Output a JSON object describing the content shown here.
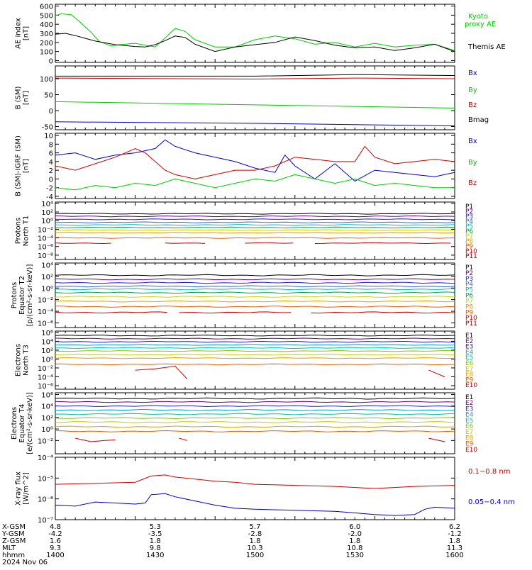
{
  "palette": {
    "black": "#000000",
    "green": "#00cc00",
    "blue": "#0000cc",
    "red": "#cc0000",
    "p_colors": [
      "#000000",
      "#6a0080",
      "#2020cc",
      "#2a6ad6",
      "#00b8b8",
      "#00a050",
      "#c8d400",
      "#e0a000",
      "#e06000",
      "#cc0000",
      "#880000"
    ],
    "e_colors": [
      "#000000",
      "#6a0080",
      "#2020cc",
      "#00a0d0",
      "#00c0a0",
      "#80c800",
      "#c8c800",
      "#e0a000",
      "#e06000",
      "#cc0000"
    ]
  },
  "chart_data": [
    {
      "id": "ae",
      "type": "line",
      "ylabel_lines": [
        "AE index",
        "[nT]"
      ],
      "ylim": [
        -20,
        620
      ],
      "y_scale": "linear",
      "yticks": [
        0,
        100,
        200,
        300,
        400,
        500,
        600
      ],
      "ytick_labels": [
        "0",
        "100",
        "200",
        "300",
        "400",
        "500",
        "600"
      ],
      "legend": [
        {
          "text": "Kyoto",
          "color": "green"
        },
        {
          "text": "proxy AE",
          "color": "green"
        },
        {
          "text": "Themis AE",
          "color": "black"
        }
      ],
      "series": [
        {
          "name": "Kyoto proxy AE",
          "color": "green",
          "x": [
            0,
            3,
            8,
            12,
            18,
            22,
            28,
            32,
            40,
            45,
            50,
            55,
            60,
            65,
            70,
            80,
            90,
            100,
            110,
            120,
            130,
            140,
            150,
            160,
            170,
            180,
            190,
            200
          ],
          "y": [
            495,
            515,
            505,
            430,
            310,
            210,
            160,
            175,
            190,
            170,
            150,
            250,
            355,
            320,
            230,
            150,
            150,
            230,
            270,
            240,
            180,
            200,
            150,
            190,
            150,
            170,
            180,
            110
          ]
        },
        {
          "name": "Themis AE",
          "color": "black",
          "x": [
            0,
            5,
            10,
            20,
            30,
            40,
            45,
            50,
            55,
            60,
            65,
            70,
            80,
            90,
            100,
            110,
            120,
            130,
            140,
            150,
            160,
            170,
            180,
            190,
            200
          ],
          "y": [
            290,
            300,
            275,
            215,
            175,
            155,
            150,
            175,
            220,
            270,
            255,
            180,
            100,
            150,
            175,
            200,
            260,
            220,
            170,
            140,
            150,
            110,
            140,
            180,
            100
          ]
        }
      ]
    },
    {
      "id": "bsm",
      "type": "line",
      "ylabel_lines": [
        "B (SM)",
        "[nT]"
      ],
      "ylim": [
        -60,
        140
      ],
      "y_scale": "linear",
      "yticks": [
        -50,
        0,
        50,
        100
      ],
      "ytick_labels": [
        "-50",
        "0",
        "50",
        "100"
      ],
      "legend": [
        {
          "text": "Bx",
          "color": "blue"
        },
        {
          "text": "By",
          "color": "green"
        },
        {
          "text": "Bz",
          "color": "red"
        },
        {
          "text": "Bmag",
          "color": "black"
        }
      ],
      "series": [
        {
          "name": "Bmag",
          "color": "black",
          "x": [
            0,
            100,
            150,
            200
          ],
          "y": [
            108,
            108,
            113,
            110
          ]
        },
        {
          "name": "Bz",
          "color": "red",
          "x": [
            0,
            100,
            150,
            200
          ],
          "y": [
            102,
            99,
            102,
            100
          ]
        },
        {
          "name": "By",
          "color": "green",
          "x": [
            0,
            100,
            200
          ],
          "y": [
            28,
            18,
            8
          ]
        },
        {
          "name": "Bx",
          "color": "blue",
          "x": [
            0,
            100,
            200
          ],
          "y": [
            -35,
            -40,
            -48
          ]
        }
      ]
    },
    {
      "id": "bdiff",
      "type": "line",
      "ylabel_lines": [
        "B (SM)-IGRF (SM)",
        "[nT]"
      ],
      "ylim": [
        -4.5,
        10.5
      ],
      "y_scale": "linear",
      "yticks": [
        -4,
        -2,
        0,
        2,
        4,
        6,
        8,
        10
      ],
      "ytick_labels": [
        "-4",
        "-2",
        "0",
        "2",
        "4",
        "6",
        "8",
        "10"
      ],
      "legend": [
        {
          "text": "Bx",
          "color": "blue"
        },
        {
          "text": "By",
          "color": "green"
        },
        {
          "text": "Bz",
          "color": "red"
        }
      ],
      "series": [
        {
          "name": "Bx",
          "color": "blue",
          "x": [
            0,
            10,
            20,
            30,
            40,
            50,
            55,
            60,
            70,
            80,
            90,
            100,
            110,
            115,
            120,
            130,
            140,
            150,
            160,
            170,
            180,
            190,
            200
          ],
          "y": [
            5.5,
            6,
            4.5,
            5.5,
            6,
            7,
            9,
            7.5,
            6,
            5,
            4,
            2.5,
            1.5,
            5.5,
            3,
            0,
            3.5,
            -0.5,
            2,
            1.5,
            1,
            0.5,
            1.5
          ]
        },
        {
          "name": "Bz",
          "color": "red",
          "x": [
            0,
            10,
            20,
            30,
            40,
            45,
            55,
            60,
            70,
            80,
            90,
            100,
            110,
            120,
            130,
            140,
            150,
            155,
            160,
            170,
            180,
            190,
            200
          ],
          "y": [
            3,
            2,
            3.5,
            5,
            7,
            6,
            2,
            1,
            0,
            1,
            2,
            2,
            3,
            5,
            4.5,
            4,
            4,
            7.5,
            5,
            3.5,
            4,
            4.5,
            4
          ]
        },
        {
          "name": "By",
          "color": "green",
          "x": [
            0,
            10,
            20,
            30,
            40,
            50,
            60,
            70,
            80,
            90,
            100,
            110,
            120,
            130,
            140,
            150,
            160,
            170,
            180,
            190,
            200
          ],
          "y": [
            -2,
            -2.5,
            -1.5,
            -2,
            -1,
            -1.5,
            0,
            -1,
            -2,
            -1,
            0,
            -0.5,
            1,
            0,
            -1,
            0,
            -1.5,
            -1,
            -1.5,
            -2,
            -2
          ]
        }
      ]
    },
    {
      "id": "p_north",
      "type": "line",
      "ylabel_lines": [
        "Protons",
        "North T1"
      ],
      "y_scale": "log",
      "ylim_exp": [
        -9,
        4.3
      ],
      "yticks_exp": [
        -8,
        -6,
        -4,
        -2,
        0,
        2,
        4
      ],
      "ytick_labels": [
        "10⁻⁸",
        "10⁻⁶",
        "10⁻⁴",
        "10⁻²",
        "10⁰",
        "10²",
        "10⁴"
      ],
      "legend_colors": "p_colors",
      "legend_labels": [
        "P1",
        "P2",
        "P3",
        "P4",
        "P5",
        "P6",
        "P7",
        "P8",
        "P9",
        "P10",
        "P11"
      ],
      "levels_exp": [
        1.6,
        1.0,
        0.3,
        -0.4,
        -1.0,
        -1.6,
        -2.2,
        -2.8,
        -4.0,
        -5.2,
        -7.0
      ],
      "gaps": [
        [],
        [],
        [],
        [],
        [],
        [],
        [],
        [],
        [],
        [
          [
            28,
            55
          ],
          [
            78,
            95
          ],
          [
            122,
            130
          ]
        ],
        [
          [
            0,
            200
          ]
        ]
      ]
    },
    {
      "id": "p_equator",
      "type": "line",
      "ylabel_lines": [
        "Protons",
        "Equator T2",
        "[p/(cm²-s-sr-keV)]"
      ],
      "y_scale": "log",
      "ylim_exp": [
        -6.8,
        4.3
      ],
      "yticks_exp": [
        -6,
        -4,
        -2,
        0,
        2,
        4
      ],
      "ytick_labels": [
        "10⁻⁶",
        "10⁻⁴",
        "10⁻²",
        "10⁰",
        "10²",
        "10⁴"
      ],
      "legend_colors": "p_colors",
      "legend_labels": [
        "P1",
        "P2",
        "P3",
        "P4",
        "P5",
        "P6",
        "P7",
        "P8",
        "P9",
        "P10",
        "P11"
      ],
      "levels_exp": [
        2.2,
        1.5,
        0.9,
        0.3,
        -0.2,
        -0.8,
        -1.5,
        -2.3,
        -3.2,
        -4.2,
        -6.0
      ],
      "gaps": [
        [],
        [],
        [],
        [],
        [],
        [],
        [],
        [],
        [],
        [
          [
            58,
            62
          ],
          [
            118,
            128
          ]
        ],
        [
          [
            0,
            200
          ]
        ]
      ]
    },
    {
      "id": "e_north",
      "type": "line",
      "ylabel_lines": [
        "Electrons",
        "North T3"
      ],
      "y_scale": "log",
      "ylim_exp": [
        -6.8,
        6.3
      ],
      "yticks_exp": [
        -6,
        -4,
        -2,
        0,
        2,
        4,
        6
      ],
      "ytick_labels": [
        "10⁻⁶",
        "10⁻⁴",
        "10⁻²",
        "10⁰",
        "10²",
        "10⁴",
        "10⁶"
      ],
      "legend_colors": "e_colors",
      "legend_labels": [
        "E1",
        "E2",
        "E3",
        "E4",
        "E5",
        "E6",
        "E7",
        "E8",
        "E9",
        "E10"
      ],
      "levels_exp": [
        5.3,
        4.6,
        3.9,
        3.2,
        2.5,
        1.8,
        1.0,
        0.2,
        -1.2,
        -6.0
      ],
      "gaps": [
        [],
        [],
        [],
        [],
        [],
        [],
        [],
        [],
        [],
        [
          [
            0,
            200
          ]
        ]
      ],
      "extra_segments": [
        {
          "color_index": 9,
          "x": [
            40,
            50,
            60,
            66
          ],
          "y_exp": [
            -2.5,
            -2.2,
            -1.6,
            -4.5
          ]
        },
        {
          "color_index": 9,
          "x": [
            187,
            195
          ],
          "y_exp": [
            -2.5,
            -4.0
          ]
        }
      ]
    },
    {
      "id": "e_equator",
      "type": "line",
      "ylabel_lines": [
        "Electrons",
        "Equator T4",
        "[e/(cm²-s-sr-keV)]"
      ],
      "y_scale": "log",
      "ylim_exp": [
        -4.3,
        6.3
      ],
      "yticks_exp": [
        -2,
        0,
        2,
        4,
        6
      ],
      "ytick_labels": [
        "10⁻²",
        "10⁰",
        "10²",
        "10⁴",
        "10⁶"
      ],
      "legend_colors": "e_colors",
      "legend_labels": [
        "E1",
        "E2",
        "E3",
        "E4",
        "E5",
        "E6",
        "E7",
        "E8",
        "E9",
        "E10"
      ],
      "levels_exp": [
        5.3,
        4.7,
        4.0,
        3.3,
        2.6,
        1.9,
        1.2,
        0.4,
        -0.4,
        -4.0
      ],
      "gaps": [
        [],
        [],
        [],
        [],
        [],
        [],
        [],
        [],
        [],
        [
          [
            0,
            200
          ]
        ]
      ],
      "extra_segments": [
        {
          "color_index": 9,
          "x": [
            10,
            18,
            25,
            30
          ],
          "y_exp": [
            -1.6,
            -2.2,
            -2.0,
            -1.9
          ]
        },
        {
          "color_index": 9,
          "x": [
            62,
            66
          ],
          "y_exp": [
            -1.6,
            -2.0
          ]
        },
        {
          "color_index": 9,
          "x": [
            187,
            195
          ],
          "y_exp": [
            -1.6,
            -2.2
          ]
        }
      ]
    },
    {
      "id": "xray",
      "type": "line",
      "ylabel_lines": [
        "X-ray flux",
        "[W/m^2]"
      ],
      "y_scale": "log",
      "ylim_exp": [
        -7,
        -4
      ],
      "yticks_exp": [
        -7,
        -6,
        -5,
        -4
      ],
      "ytick_labels": [
        "10⁻⁷",
        "10⁻⁶",
        "10⁻⁵",
        "10⁻⁴"
      ],
      "legend": [
        {
          "text": "0.1−0.8 nm",
          "color": "red"
        },
        {
          "text": "0.05−0.4 nm",
          "color": "blue"
        }
      ],
      "series": [
        {
          "name": "0.1−0.8 nm",
          "color": "red",
          "x": [
            0,
            20,
            40,
            48,
            55,
            60,
            70,
            80,
            90,
            100,
            120,
            140,
            160,
            180,
            200
          ],
          "y_exp": [
            -5.3,
            -5.25,
            -5.2,
            -4.9,
            -4.85,
            -4.95,
            -5.05,
            -5.15,
            -5.2,
            -5.3,
            -5.35,
            -5.4,
            -5.5,
            -5.4,
            -5.35
          ]
        },
        {
          "name": "0.05−0.4 nm",
          "color": "blue",
          "x": [
            0,
            10,
            20,
            30,
            40,
            45,
            48,
            55,
            60,
            70,
            80,
            90,
            100,
            120,
            140,
            160,
            170,
            180,
            185,
            190,
            200
          ],
          "y_exp": [
            -6.3,
            -6.35,
            -6.15,
            -6.2,
            -6.25,
            -6.2,
            -5.8,
            -5.75,
            -5.9,
            -6.1,
            -6.3,
            -6.45,
            -6.5,
            -6.55,
            -6.6,
            -6.75,
            -6.8,
            -6.75,
            -6.5,
            -6.4,
            -6.45
          ]
        }
      ]
    }
  ],
  "x_axis": {
    "xlim": [
      0,
      200
    ],
    "tick_positions": [
      0,
      50,
      100,
      150,
      200
    ],
    "row_labels": [
      "X-GSM",
      "Y-GSM",
      "Z-GSM",
      "MLT",
      "hhmm"
    ],
    "columns": [
      [
        "4.8",
        "-4.2",
        "1.6",
        "9.3",
        "1400"
      ],
      [
        "5.3",
        "-3.5",
        "1.8",
        "9.8",
        "1430"
      ],
      [
        "5.7",
        "-2.8",
        "1.8",
        "10.3",
        "1500"
      ],
      [
        "6.0",
        "-2.0",
        "1.8",
        "10.8",
        "1530"
      ],
      [
        "6.2",
        "-1.2",
        "1.8",
        "11.3",
        "1600"
      ]
    ],
    "date": "2024 Nov 06"
  }
}
